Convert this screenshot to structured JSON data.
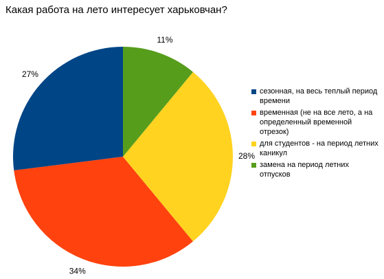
{
  "chart_data": {
    "type": "pie",
    "title": "Какая работа на лето интересует харьковчан?",
    "categories": [
      "сезонная, на весь теплый период времени",
      "временная (не на все лето, а на определенный временной отрезок)",
      "для студентов - на период летних каникул",
      "замена на период летних отпусков"
    ],
    "values": [
      27,
      34,
      28,
      11
    ],
    "value_labels": [
      "27%",
      "34%",
      "28%",
      "11%"
    ],
    "colors": [
      "#004586",
      "#ff420e",
      "#ffd320",
      "#579d1c"
    ],
    "legend": "right"
  }
}
